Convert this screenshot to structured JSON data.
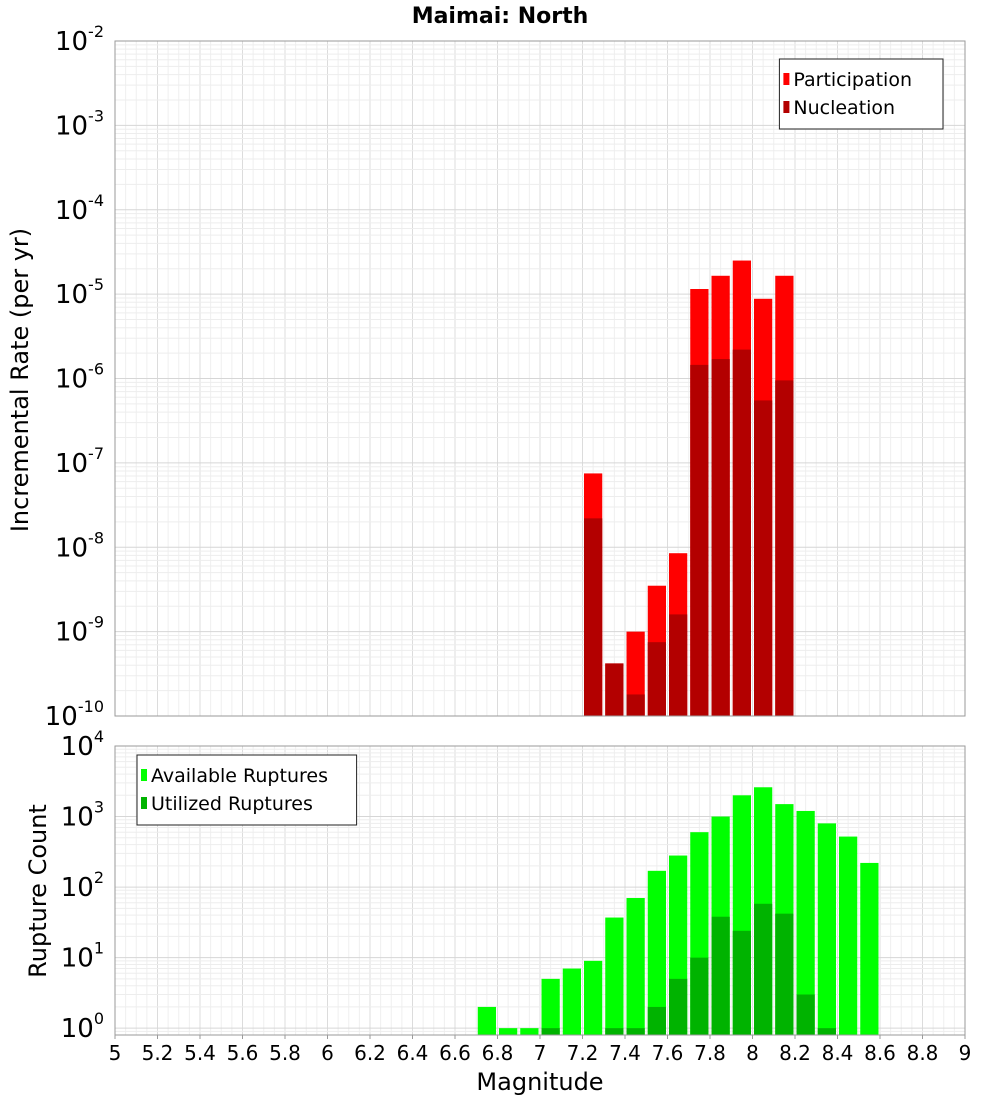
{
  "chart_data": [
    {
      "type": "bar",
      "title": "Maimai: North",
      "xlabel": "",
      "ylabel": "Incremental Rate (per yr)",
      "yscale": "log",
      "ylim": [
        1e-10,
        0.01
      ],
      "xlim": [
        5,
        9
      ],
      "grid": true,
      "legend_position": "top-right",
      "y_tick_labels": [
        {
          "base": "10",
          "exp": "-10",
          "value": 1e-10
        },
        {
          "base": "10",
          "exp": "-9",
          "value": 1e-09
        },
        {
          "base": "10",
          "exp": "-8",
          "value": 1e-08
        },
        {
          "base": "10",
          "exp": "-7",
          "value": 1e-07
        },
        {
          "base": "10",
          "exp": "-6",
          "value": 1e-06
        },
        {
          "base": "10",
          "exp": "-5",
          "value": 1e-05
        },
        {
          "base": "10",
          "exp": "-4",
          "value": 0.0001
        },
        {
          "base": "10",
          "exp": "-3",
          "value": 0.001
        },
        {
          "base": "10",
          "exp": "-2",
          "value": 0.01
        }
      ],
      "series": [
        {
          "name": "Participation",
          "color": "#ff0000",
          "x": [
            7.25,
            7.35,
            7.45,
            7.55,
            7.65,
            7.75,
            7.85,
            7.95,
            8.05,
            8.15
          ],
          "values": [
            7.5e-08,
            4.2e-10,
            1e-09,
            3.5e-09,
            8.5e-09,
            1.15e-05,
            1.65e-05,
            2.5e-05,
            8.8e-06,
            1.65e-05
          ]
        },
        {
          "name": "Nucleation",
          "color": "#b30000",
          "x": [
            7.25,
            7.35,
            7.45,
            7.55,
            7.65,
            7.75,
            7.85,
            7.95,
            8.05,
            8.15
          ],
          "values": [
            2.2e-08,
            4.2e-10,
            1.8e-10,
            7.5e-10,
            1.6e-09,
            1.45e-06,
            1.7e-06,
            2.2e-06,
            5.5e-07,
            9.5e-07
          ]
        }
      ]
    },
    {
      "type": "bar",
      "title": "",
      "xlabel": "Magnitude",
      "ylabel": "Rupture Count",
      "yscale": "log",
      "ylim": [
        0.8,
        10000
      ],
      "xlim": [
        5,
        9
      ],
      "grid": true,
      "legend_position": "top-left",
      "x_ticks": [
        "5",
        "5.2",
        "5.4",
        "5.6",
        "5.8",
        "6",
        "6.2",
        "6.4",
        "6.6",
        "6.8",
        "7",
        "7.2",
        "7.4",
        "7.6",
        "7.8",
        "8",
        "8.2",
        "8.4",
        "8.6",
        "8.8",
        "9"
      ],
      "y_tick_labels": [
        {
          "base": "10",
          "exp": "0",
          "value": 1
        },
        {
          "base": "10",
          "exp": "1",
          "value": 10
        },
        {
          "base": "10",
          "exp": "2",
          "value": 100
        },
        {
          "base": "10",
          "exp": "3",
          "value": 1000
        },
        {
          "base": "10",
          "exp": "4",
          "value": 10000
        }
      ],
      "series": [
        {
          "name": "Available Ruptures",
          "color": "#00ff00",
          "x": [
            6.75,
            6.85,
            6.95,
            7.05,
            7.15,
            7.25,
            7.35,
            7.45,
            7.55,
            7.65,
            7.75,
            7.85,
            7.95,
            8.05,
            8.15,
            8.25,
            8.35,
            8.45,
            8.55
          ],
          "values": [
            2,
            1,
            1,
            5,
            7,
            9,
            37,
            70,
            170,
            280,
            600,
            1000,
            2000,
            2600,
            1500,
            1200,
            800,
            520,
            220
          ]
        },
        {
          "name": "Utilized Ruptures",
          "color": "#00b300",
          "x": [
            7.05,
            7.35,
            7.45,
            7.55,
            7.65,
            7.75,
            7.85,
            7.95,
            8.05,
            8.15,
            8.25,
            8.35
          ],
          "values": [
            1,
            1,
            1,
            2,
            5,
            10,
            38,
            24,
            58,
            42,
            3,
            1
          ]
        }
      ]
    }
  ]
}
